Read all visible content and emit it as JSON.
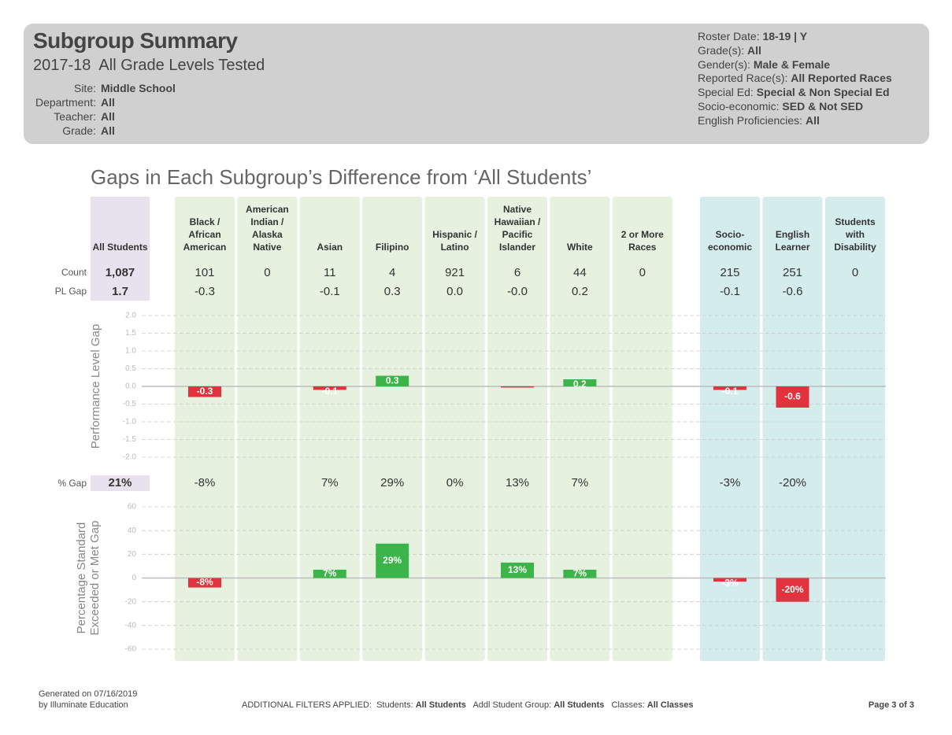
{
  "header": {
    "title": "Subgroup Summary",
    "subtitle": "2017-18  All Grade Levels Tested",
    "filters": [
      {
        "label": "Site:",
        "value": "Middle School"
      },
      {
        "label": "Department:",
        "value": "All"
      },
      {
        "label": "Teacher:",
        "value": "All"
      },
      {
        "label": "Grade:",
        "value": "All"
      }
    ],
    "roster": [
      {
        "label": "Roster Date:",
        "value": "18-19 | Y"
      },
      {
        "label": "Grade(s):",
        "value": "All"
      },
      {
        "label": "Gender(s):",
        "value": "Male & Female"
      },
      {
        "label": "Reported Race(s):",
        "value": "All Reported Races"
      },
      {
        "label": "Special Ed:",
        "value": "Special & Non Special Ed"
      },
      {
        "label": "Socio-economic:",
        "value": "SED & Not SED"
      },
      {
        "label": "English Proficiencies:",
        "value": "All"
      }
    ]
  },
  "section_title": "Gaps in Each Subgroup’s Difference from ‘All Students’",
  "table": {
    "reference_label": "All Students",
    "row_labels": [
      "Count",
      "PL Gap",
      "% Gap"
    ],
    "reference": {
      "count": "1,087",
      "pl_gap": 1.7,
      "pct_gap": "21%"
    },
    "reference_color": "#e8e2ee",
    "categories": [
      "Black /\nAfrican\nAmerican",
      "American\nIndian /\nAlaska\nNative",
      "Asian",
      "Filipino",
      "Hispanic /\nLatino",
      "Native\nHawaiian /\nPacific\nIslander",
      "White",
      "2 or More\nRaces",
      "Socio-\neconomic",
      "English\nLearner",
      "Students\nwith\nDisability"
    ],
    "counts": [
      101,
      0,
      11,
      4,
      921,
      6,
      44,
      0,
      215,
      251,
      0
    ],
    "column_colors": [
      "#e6f2df",
      "#e6f2df",
      "#e6f2df",
      "#e6f2df",
      "#e6f2df",
      "#e6f2df",
      "#e6f2df",
      "#e6f2df",
      "#d4ecec",
      "#d4ecec",
      "#d4ecec"
    ]
  },
  "chart_data": [
    {
      "type": "bar",
      "ylabel": [
        "Performance Level Gap"
      ],
      "values": [
        -0.3,
        null,
        -0.1,
        0.3,
        0.0,
        -0.0,
        0.2,
        null,
        -0.1,
        -0.6,
        null
      ],
      "value_labels": [
        "-0.3",
        null,
        "-0.1",
        "0.3",
        "0.0",
        "-0.0",
        "0.2",
        null,
        "-0.1",
        "-0.6",
        null
      ],
      "ylim": [
        -2,
        2
      ],
      "yticks": [
        {
          "value": 2,
          "label": "2.0"
        },
        1.5,
        {
          "value": 1,
          "label": "1.0"
        },
        0.5,
        {
          "value": 0,
          "label": "0.0"
        },
        -0.5,
        {
          "value": -1,
          "label": "-1.0"
        },
        -1.5,
        {
          "value": -2,
          "label": "-2.0"
        }
      ],
      "grid": true,
      "positive_color": "#3bb54a",
      "negative_color": "#e2323e"
    },
    {
      "type": "bar",
      "ylabel": [
        "Percentage Standard",
        "Exceeded or Met Gap"
      ],
      "values": [
        -8,
        null,
        7,
        29,
        0,
        13,
        7,
        null,
        -3,
        -20,
        null
      ],
      "value_labels": [
        "-8%",
        null,
        "7%",
        "29%",
        "0%",
        "13%",
        "7%",
        null,
        "-3%",
        "-20%",
        null
      ],
      "ylim": [
        -60,
        60
      ],
      "yticks": [
        60,
        40,
        20,
        0,
        -20,
        -40,
        -60
      ],
      "grid": true,
      "positive_color": "#3bb54a",
      "negative_color": "#e2323e"
    }
  ],
  "footer": {
    "generated": "Generated on 07/16/2019",
    "by": "by Illuminate Education",
    "filters_title": "ADDITIONAL FILTERS APPLIED:",
    "filters": [
      {
        "label": "Students:",
        "value": "All Students"
      },
      {
        "label": "Addl Student Group:",
        "value": "All Students"
      },
      {
        "label": "Classes:",
        "value": "All Classes"
      }
    ],
    "page": "Page 3 of 3"
  }
}
